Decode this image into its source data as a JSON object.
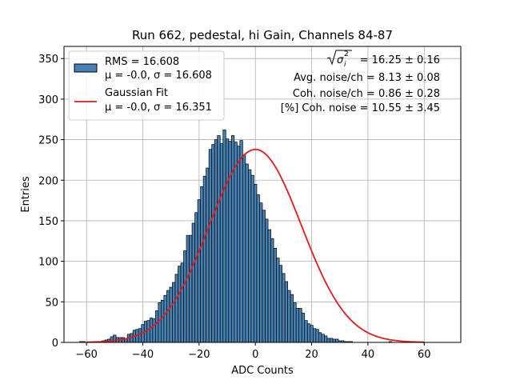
{
  "chart_data": {
    "type": "bar",
    "title": "Run 662, pedestal, hi Gain, Channels 84-87",
    "xlabel": "ADC Counts",
    "ylabel": "Entries",
    "xlim": [
      -68,
      73
    ],
    "ylim": [
      0,
      365
    ],
    "xticks": [
      -60,
      -40,
      -20,
      0,
      20,
      40,
      60
    ],
    "yticks": [
      0,
      50,
      100,
      150,
      200,
      250,
      300,
      350
    ],
    "grid": true,
    "bar_color": "#4682b4",
    "fit_color": "#e31a1c",
    "bin_width": 1,
    "x_start": -62,
    "values": [
      1,
      1,
      0,
      0,
      0,
      1,
      1,
      1,
      2,
      3,
      4,
      7,
      9,
      6,
      6,
      6,
      5,
      10,
      11,
      15,
      16,
      17,
      22,
      26,
      27,
      30,
      29,
      39,
      49,
      52,
      58,
      64,
      68,
      74,
      84,
      94,
      98,
      113,
      132,
      132,
      147,
      160,
      176,
      192,
      205,
      215,
      238,
      244,
      250,
      255,
      245,
      262,
      251,
      248,
      255,
      247,
      242,
      249,
      231,
      220,
      213,
      206,
      195,
      182,
      172,
      163,
      152,
      139,
      128,
      116,
      104,
      95,
      85,
      75,
      64,
      59,
      49,
      42,
      42,
      36,
      27,
      23,
      21,
      17,
      16,
      12,
      10,
      8,
      5,
      5,
      4,
      4,
      2,
      2,
      1,
      1,
      1,
      0,
      0,
      0,
      0,
      0,
      0,
      0,
      0,
      0,
      0,
      0,
      0,
      0,
      1
    ],
    "fit": {
      "amplitude": 238,
      "mean": -0.0,
      "sigma": 16.351
    },
    "legend": {
      "position": "upper-left",
      "entries": [
        {
          "kind": "patch",
          "line1": "RMS = 16.608",
          "line2": "μ = -0.0, σ = 16.608"
        },
        {
          "kind": "line",
          "line1": "Gaussian Fit",
          "line2": "μ = -0.0, σ = 16.351"
        }
      ]
    },
    "annotations": {
      "sigma_rest": " = 16.25 ± 0.16",
      "avg_noise": "Avg. noise/ch = 8.13 ± 0.08",
      "coh_noise": "Coh. noise/ch = 0.86 ± 0.28",
      "coh_pct": "[%] Coh. noise = 10.55 ± 3.45"
    }
  }
}
